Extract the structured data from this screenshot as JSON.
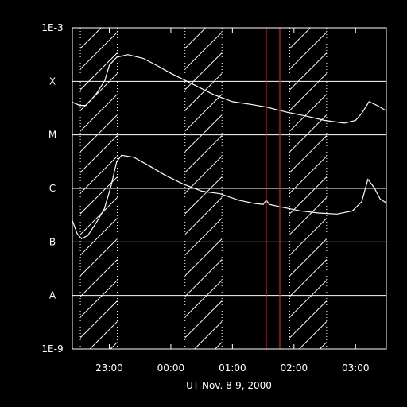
{
  "chart_data": {
    "type": "line",
    "title": "",
    "xlabel": "UT Nov. 8-9, 2000",
    "ylabel": "",
    "y_scale": "log",
    "ylim": [
      "1E-9",
      "1E-3"
    ],
    "y_ticks": [
      {
        "label": "1E-3",
        "exp": -3
      },
      {
        "label": "X",
        "exp": -4
      },
      {
        "label": "M",
        "exp": -5
      },
      {
        "label": "C",
        "exp": -6
      },
      {
        "label": "B",
        "exp": -7
      },
      {
        "label": "A",
        "exp": -8
      },
      {
        "label": "1E-9",
        "exp": -9
      }
    ],
    "x_range_hours": [
      22.4,
      27.5
    ],
    "x_ticks": [
      {
        "label": "23:00",
        "h": 23
      },
      {
        "label": "00:00",
        "h": 24
      },
      {
        "label": "01:00",
        "h": 25
      },
      {
        "label": "02:00",
        "h": 26
      },
      {
        "label": "03:00",
        "h": 27
      }
    ],
    "shaded_intervals_hours": [
      [
        22.53,
        23.13
      ],
      [
        24.23,
        24.83
      ],
      [
        25.93,
        26.53
      ]
    ],
    "vertical_markers_hours": [
      25.55,
      25.77
    ],
    "marker_color": "#c81e1e",
    "line_color": "#ffffff",
    "background": "#000000",
    "grid": "horizontal at each decade",
    "series": [
      {
        "points": [
          [
            22.4,
            -4.39
          ],
          [
            22.52,
            -4.45
          ],
          [
            22.62,
            -4.45
          ],
          [
            22.78,
            -4.25
          ],
          [
            22.93,
            -3.98
          ],
          [
            23.0,
            -3.7
          ],
          [
            23.12,
            -3.55
          ],
          [
            23.3,
            -3.5
          ],
          [
            23.55,
            -3.57
          ],
          [
            23.8,
            -3.72
          ],
          [
            24.0,
            -3.85
          ],
          [
            24.35,
            -4.05
          ],
          [
            24.7,
            -4.25
          ],
          [
            25.0,
            -4.38
          ],
          [
            25.3,
            -4.43
          ],
          [
            25.55,
            -4.48
          ],
          [
            25.9,
            -4.58
          ],
          [
            26.2,
            -4.65
          ],
          [
            26.5,
            -4.73
          ],
          [
            26.82,
            -4.78
          ],
          [
            27.0,
            -4.73
          ],
          [
            27.1,
            -4.6
          ],
          [
            27.22,
            -4.38
          ],
          [
            27.35,
            -4.45
          ],
          [
            27.5,
            -4.55
          ]
        ]
      },
      {
        "points": [
          [
            22.4,
            -6.6
          ],
          [
            22.48,
            -6.85
          ],
          [
            22.55,
            -6.94
          ],
          [
            22.65,
            -6.88
          ],
          [
            22.8,
            -6.62
          ],
          [
            22.92,
            -6.38
          ],
          [
            23.03,
            -5.95
          ],
          [
            23.12,
            -5.5
          ],
          [
            23.2,
            -5.38
          ],
          [
            23.4,
            -5.42
          ],
          [
            23.65,
            -5.58
          ],
          [
            23.9,
            -5.75
          ],
          [
            24.2,
            -5.92
          ],
          [
            24.5,
            -6.05
          ],
          [
            24.8,
            -6.1
          ],
          [
            25.1,
            -6.22
          ],
          [
            25.35,
            -6.28
          ],
          [
            25.5,
            -6.3
          ],
          [
            25.55,
            -6.22
          ],
          [
            25.6,
            -6.3
          ],
          [
            25.8,
            -6.35
          ],
          [
            26.1,
            -6.42
          ],
          [
            26.4,
            -6.46
          ],
          [
            26.7,
            -6.48
          ],
          [
            26.95,
            -6.42
          ],
          [
            27.1,
            -6.25
          ],
          [
            27.2,
            -5.83
          ],
          [
            27.3,
            -5.98
          ],
          [
            27.4,
            -6.2
          ],
          [
            27.5,
            -6.27
          ]
        ]
      }
    ]
  }
}
